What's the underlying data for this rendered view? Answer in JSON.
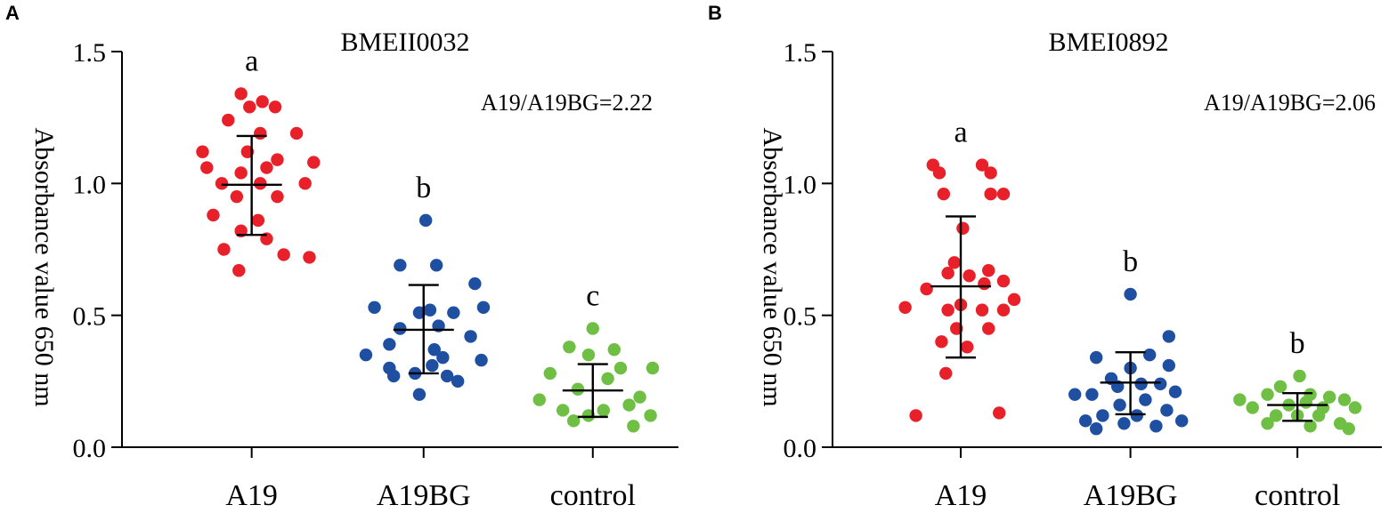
{
  "chart_data": [
    {
      "type": "scatter",
      "panel_label": "A",
      "title": "BMEII0032",
      "ylabel": "Absorbance value 650 nm",
      "xlabel": "",
      "ylim": [
        0,
        1.5
      ],
      "yticks": [
        "0.0",
        "0.5",
        "1.0",
        "1.5"
      ],
      "ratio_text": "A19/A19BG=2.22",
      "colors": {
        "A19": "#e8202a",
        "A19BG": "#1f4fa0",
        "control": "#6fbf44"
      },
      "groups": [
        {
          "name": "A19",
          "letter": "a",
          "mean": 0.995,
          "sd_low": 0.805,
          "sd_high": 1.18,
          "points": [
            [
              -0.05,
              1.34
            ],
            [
              0.05,
              1.31
            ],
            [
              -0.01,
              1.29
            ],
            [
              0.11,
              1.29
            ],
            [
              -0.11,
              1.24
            ],
            [
              0.04,
              1.19
            ],
            [
              0.21,
              1.19
            ],
            [
              -0.23,
              1.12
            ],
            [
              -0.02,
              1.12
            ],
            [
              0.12,
              1.09
            ],
            [
              0.29,
              1.08
            ],
            [
              -0.21,
              1.06
            ],
            [
              0.07,
              1.06
            ],
            [
              -0.05,
              1.04
            ],
            [
              -0.14,
              1.0
            ],
            [
              0.25,
              1.0
            ],
            [
              0.04,
              1.0
            ],
            [
              -0.07,
              0.95
            ],
            [
              0.12,
              0.95
            ],
            [
              -0.18,
              0.88
            ],
            [
              0.03,
              0.86
            ],
            [
              -0.05,
              0.82
            ],
            [
              0.07,
              0.79
            ],
            [
              -0.13,
              0.75
            ],
            [
              0.15,
              0.73
            ],
            [
              0.27,
              0.72
            ],
            [
              -0.06,
              0.67
            ]
          ]
        },
        {
          "name": "A19BG",
          "letter": "b",
          "mean": 0.445,
          "sd_low": 0.28,
          "sd_high": 0.615,
          "points": [
            [
              0.01,
              0.86
            ],
            [
              -0.11,
              0.69
            ],
            [
              0.06,
              0.69
            ],
            [
              0.24,
              0.62
            ],
            [
              -0.23,
              0.53
            ],
            [
              0.28,
              0.53
            ],
            [
              0.03,
              0.52
            ],
            [
              -0.02,
              0.51
            ],
            [
              0.14,
              0.51
            ],
            [
              -0.11,
              0.45
            ],
            [
              0.07,
              0.46
            ],
            [
              0.22,
              0.42
            ],
            [
              -0.16,
              0.39
            ],
            [
              0.05,
              0.37
            ],
            [
              -0.27,
              0.35
            ],
            [
              0.09,
              0.34
            ],
            [
              0.27,
              0.33
            ],
            [
              -0.16,
              0.3
            ],
            [
              0.04,
              0.31
            ],
            [
              -0.04,
              0.28
            ],
            [
              0.11,
              0.27
            ],
            [
              -0.14,
              0.27
            ],
            [
              0.16,
              0.25
            ],
            [
              -0.02,
              0.2
            ]
          ]
        },
        {
          "name": "control",
          "letter": "c",
          "mean": 0.215,
          "sd_low": 0.115,
          "sd_high": 0.315,
          "points": [
            [
              0.0,
              0.45
            ],
            [
              -0.11,
              0.38
            ],
            [
              0.1,
              0.37
            ],
            [
              -0.02,
              0.35
            ],
            [
              0.13,
              0.3
            ],
            [
              0.28,
              0.3
            ],
            [
              -0.2,
              0.28
            ],
            [
              0.07,
              0.26
            ],
            [
              -0.07,
              0.22
            ],
            [
              0.22,
              0.19
            ],
            [
              -0.25,
              0.18
            ],
            [
              0.17,
              0.16
            ],
            [
              -0.14,
              0.14
            ],
            [
              0.05,
              0.14
            ],
            [
              -0.02,
              0.12
            ],
            [
              0.27,
              0.12
            ],
            [
              -0.09,
              0.1
            ],
            [
              0.19,
              0.08
            ]
          ]
        }
      ]
    },
    {
      "type": "scatter",
      "panel_label": "B",
      "title": "BMEI0892",
      "ylabel": "Absorbance value 650 nm",
      "xlabel": "",
      "ylim": [
        0,
        1.5
      ],
      "yticks": [
        "0.0",
        "0.5",
        "1.0",
        "1.5"
      ],
      "ratio_text": "A19/A19BG=2.06",
      "colors": {
        "A19": "#e8202a",
        "A19BG": "#1f4fa0",
        "control": "#6fbf44"
      },
      "groups": [
        {
          "name": "A19",
          "letter": "a",
          "mean": 0.61,
          "sd_low": 0.34,
          "sd_high": 0.875,
          "points": [
            [
              -0.13,
              1.07
            ],
            [
              0.1,
              1.07
            ],
            [
              0.14,
              1.04
            ],
            [
              -0.1,
              1.04
            ],
            [
              0.14,
              0.96
            ],
            [
              0.2,
              0.96
            ],
            [
              -0.08,
              0.96
            ],
            [
              0.01,
              0.83
            ],
            [
              -0.03,
              0.7
            ],
            [
              0.13,
              0.67
            ],
            [
              -0.06,
              0.66
            ],
            [
              0.04,
              0.65
            ],
            [
              0.11,
              0.62
            ],
            [
              0.2,
              0.63
            ],
            [
              -0.16,
              0.6
            ],
            [
              0.25,
              0.56
            ],
            [
              0.0,
              0.54
            ],
            [
              -0.06,
              0.52
            ],
            [
              0.1,
              0.52
            ],
            [
              0.2,
              0.52
            ],
            [
              -0.26,
              0.53
            ],
            [
              -0.02,
              0.45
            ],
            [
              0.13,
              0.45
            ],
            [
              -0.09,
              0.4
            ],
            [
              0.03,
              0.38
            ],
            [
              -0.07,
              0.28
            ],
            [
              -0.21,
              0.12
            ],
            [
              0.18,
              0.13
            ]
          ]
        },
        {
          "name": "A19BG",
          "letter": "b",
          "mean": 0.245,
          "sd_low": 0.125,
          "sd_high": 0.36,
          "points": [
            [
              0.0,
              0.58
            ],
            [
              0.18,
              0.42
            ],
            [
              -0.16,
              0.34
            ],
            [
              0.09,
              0.35
            ],
            [
              0.18,
              0.31
            ],
            [
              0.0,
              0.3
            ],
            [
              -0.09,
              0.26
            ],
            [
              -0.06,
              0.23
            ],
            [
              0.05,
              0.24
            ],
            [
              0.14,
              0.24
            ],
            [
              -0.18,
              0.2
            ],
            [
              0.21,
              0.21
            ],
            [
              -0.26,
              0.2
            ],
            [
              0.07,
              0.18
            ],
            [
              -0.05,
              0.16
            ],
            [
              0.17,
              0.14
            ],
            [
              -0.13,
              0.12
            ],
            [
              0.03,
              0.12
            ],
            [
              -0.21,
              0.1
            ],
            [
              0.24,
              0.1
            ],
            [
              -0.03,
              0.09
            ],
            [
              0.12,
              0.08
            ],
            [
              -0.16,
              0.07
            ]
          ]
        },
        {
          "name": "control",
          "letter": "b",
          "mean": 0.16,
          "sd_low": 0.1,
          "sd_high": 0.205,
          "points": [
            [
              0.01,
              0.27
            ],
            [
              -0.08,
              0.23
            ],
            [
              0.06,
              0.2
            ],
            [
              -0.14,
              0.2
            ],
            [
              0.15,
              0.19
            ],
            [
              0.22,
              0.18
            ],
            [
              -0.27,
              0.18
            ],
            [
              0.04,
              0.17
            ],
            [
              -0.04,
              0.16
            ],
            [
              0.12,
              0.15
            ],
            [
              0.27,
              0.15
            ],
            [
              -0.21,
              0.15
            ],
            [
              -0.1,
              0.12
            ],
            [
              0.1,
              0.12
            ],
            [
              0.0,
              0.12
            ],
            [
              -0.14,
              0.09
            ],
            [
              0.2,
              0.09
            ],
            [
              0.06,
              0.08
            ],
            [
              0.24,
              0.07
            ]
          ]
        }
      ]
    }
  ]
}
